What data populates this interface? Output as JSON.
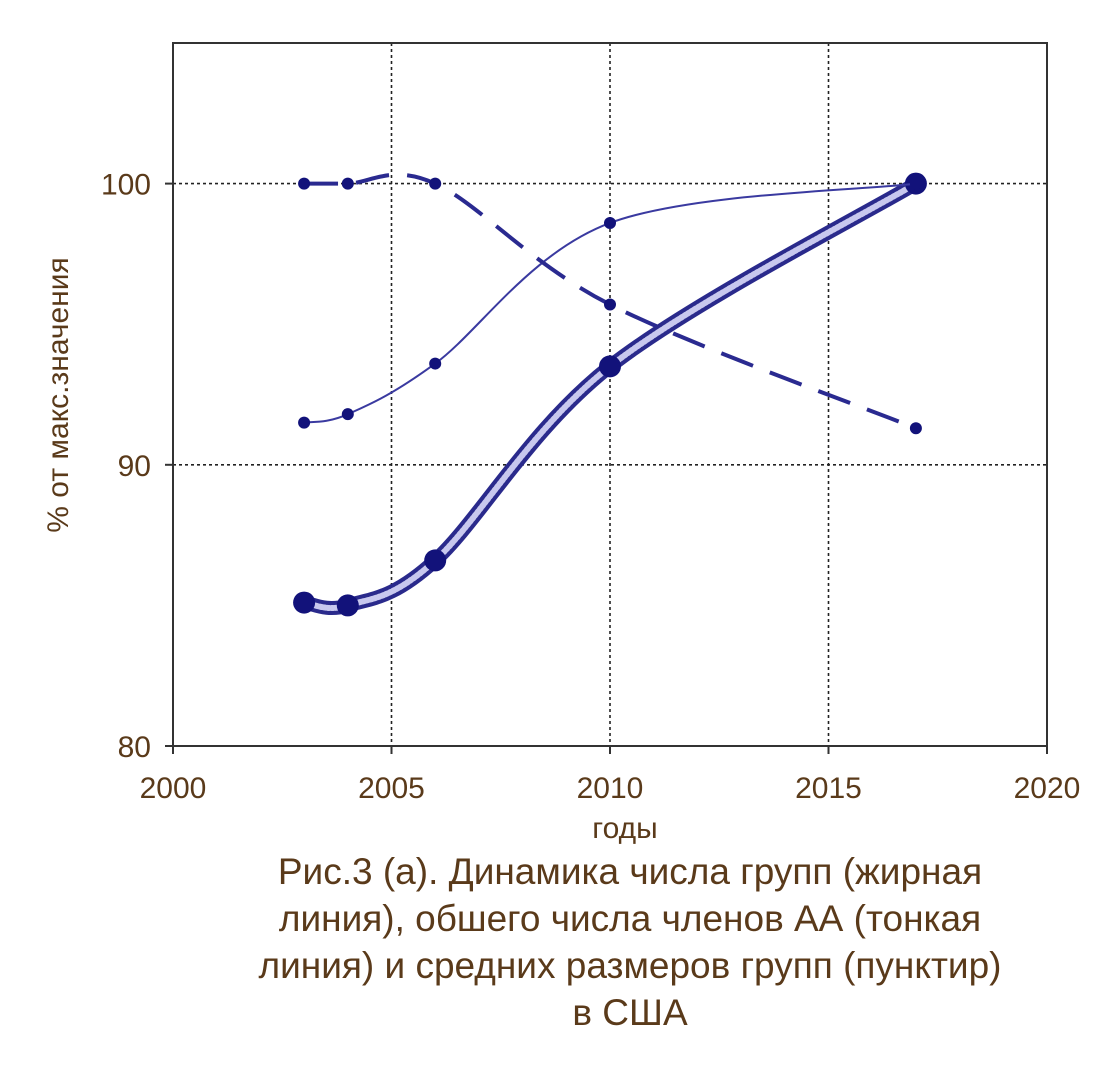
{
  "chart_data": {
    "type": "line",
    "title": "",
    "xlabel": "годы",
    "ylabel": "% от макс.значения",
    "xlim": [
      2000,
      2020
    ],
    "ylim": [
      80,
      105
    ],
    "x_ticks": [
      2000,
      2005,
      2010,
      2015,
      2020
    ],
    "y_ticks": [
      80,
      90,
      100
    ],
    "grid": true,
    "legend": "none",
    "series": [
      {
        "style": "thick",
        "color": "#1f1f8f",
        "points": [
          [
            2003,
            85.1
          ],
          [
            2004,
            85.0
          ],
          [
            2006,
            86.6
          ],
          [
            2010,
            93.5
          ],
          [
            2017,
            100.0
          ]
        ]
      },
      {
        "style": "thin",
        "color": "#3a3aa0",
        "points": [
          [
            2003,
            91.5
          ],
          [
            2004,
            91.8
          ],
          [
            2006,
            93.6
          ],
          [
            2010,
            98.6
          ],
          [
            2017,
            100.0
          ]
        ]
      },
      {
        "style": "dashed",
        "color": "#2a2a90",
        "points": [
          [
            2003,
            100.0
          ],
          [
            2004,
            100.0
          ],
          [
            2006,
            100.0
          ],
          [
            2010,
            95.7
          ],
          [
            2017,
            91.3
          ]
        ]
      }
    ]
  },
  "caption": {
    "lines": [
      "Рис.3 (а). Динамика числа групп (жирная",
      "линия), обшего числа членов АА (тонкая",
      "линия) и средних размеров групп (пунктир)",
      "в США"
    ]
  }
}
